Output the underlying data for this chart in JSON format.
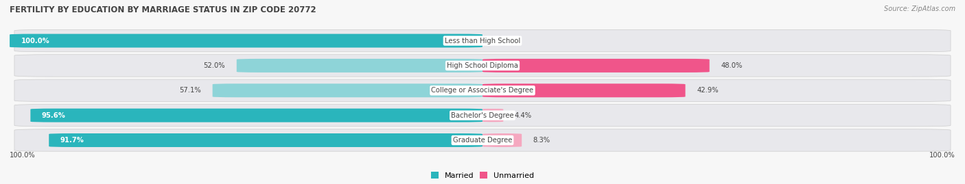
{
  "title": "FERTILITY BY EDUCATION BY MARRIAGE STATUS IN ZIP CODE 20772",
  "source": "Source: ZipAtlas.com",
  "categories": [
    "Less than High School",
    "High School Diploma",
    "College or Associate's Degree",
    "Bachelor's Degree",
    "Graduate Degree"
  ],
  "married": [
    100.0,
    52.0,
    57.1,
    95.6,
    91.7
  ],
  "unmarried": [
    0.0,
    48.0,
    42.9,
    4.4,
    8.3
  ],
  "married_colors": [
    "#2ab5bc",
    "#8ed4d8",
    "#8ed4d8",
    "#2ab5bc",
    "#2ab5bc"
  ],
  "unmarried_colors": [
    "#f5a8c0",
    "#f0558a",
    "#f0558a",
    "#f5a8c0",
    "#f5a8c0"
  ],
  "row_bg_color": "#e8e8ec",
  "fig_bg_color": "#f7f7f7",
  "title_color": "#444444",
  "text_color_dark": "#444444",
  "text_color_white": "#ffffff",
  "source_color": "#888888",
  "axis_label_left": "100.0%",
  "axis_label_right": "100.0%",
  "legend_married": "Married",
  "legend_unmarried": "Unmarried",
  "figsize": [
    14.06,
    2.69
  ],
  "dpi": 100
}
